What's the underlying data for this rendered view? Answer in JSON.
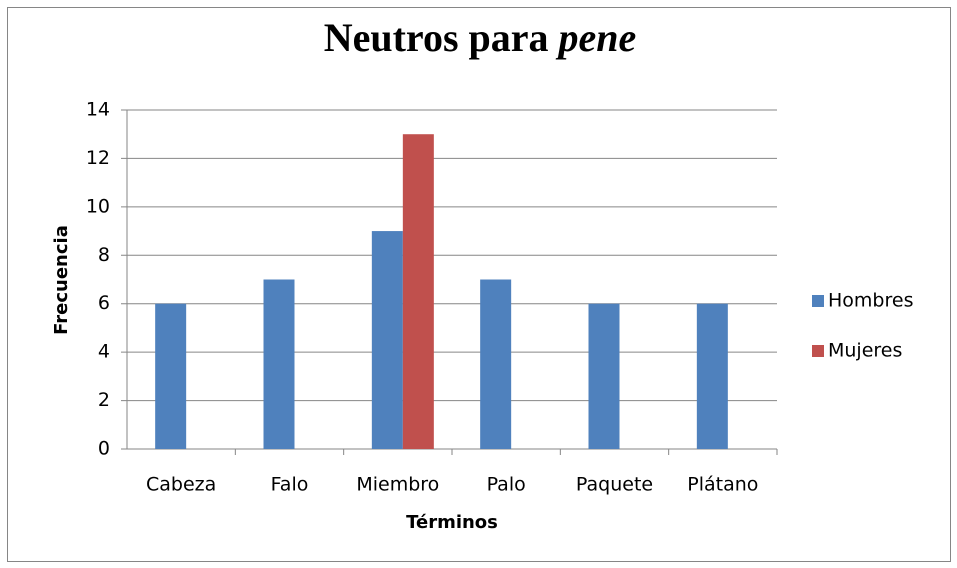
{
  "chart_data": {
    "type": "bar",
    "title": [
      "Neutros para ",
      "pene"
    ],
    "x_label": "Términos",
    "y_label": "Frecuencia",
    "categories": [
      "Cabeza",
      "Falo",
      "Miembro",
      "Palo",
      "Paquete",
      "Plátano"
    ],
    "series": [
      {
        "name": "Hombres",
        "color": "#4f81bd",
        "values": [
          6,
          7,
          9,
          7,
          6,
          6
        ]
      },
      {
        "name": "Mujeres",
        "color": "#c0504d",
        "values": [
          0,
          0,
          13,
          0,
          0,
          0
        ]
      }
    ],
    "ylim": [
      0,
      14
    ],
    "yticks": [
      0,
      2,
      4,
      6,
      8,
      10,
      12,
      14
    ],
    "grid": true,
    "legend": "right"
  }
}
